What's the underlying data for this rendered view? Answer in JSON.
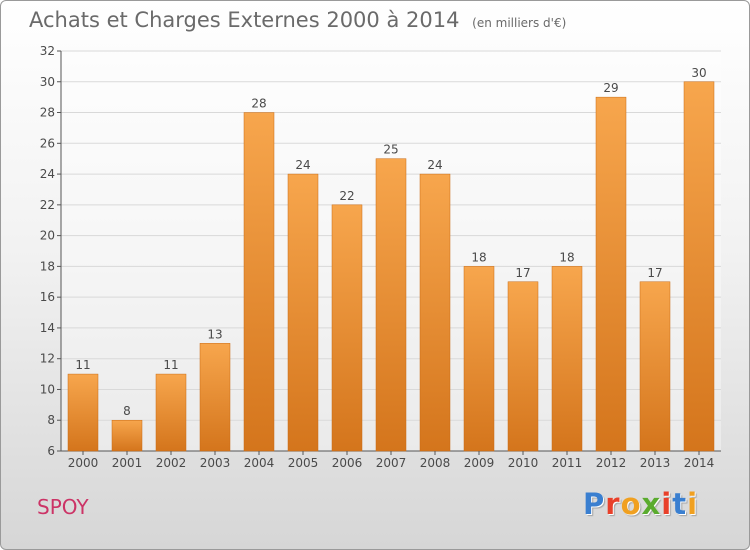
{
  "title": "Achats et Charges Externes 2000 à 2014",
  "subtitle": "(en milliers d'€)",
  "commune": "SPOY",
  "brand": {
    "text": "Proxiti",
    "letter_colors": [
      "#3a7fd0",
      "#e8402a",
      "#f0a020",
      "#5aab2e",
      "#e8402a",
      "#3a7fd0",
      "#f0a020"
    ]
  },
  "colors": {
    "bar_top": "#f7a64d",
    "bar_bottom": "#d4751c",
    "grid": "#d9d9d9",
    "axis": "#555555"
  },
  "chart_data": {
    "type": "bar",
    "categories": [
      "2000",
      "2001",
      "2002",
      "2003",
      "2004",
      "2005",
      "2006",
      "2007",
      "2008",
      "2009",
      "2010",
      "2011",
      "2012",
      "2013",
      "2014"
    ],
    "values": [
      11,
      8,
      11,
      13,
      28,
      24,
      22,
      25,
      24,
      18,
      17,
      18,
      29,
      17,
      30
    ],
    "title": "Achats et Charges Externes 2000 à 2014",
    "subtitle": "(en milliers d'€)",
    "xlabel": "",
    "ylabel": "",
    "ylim": [
      6,
      32
    ],
    "yticks": [
      6,
      8,
      10,
      12,
      14,
      16,
      18,
      20,
      22,
      24,
      26,
      28,
      30,
      32
    ],
    "grid": true,
    "data_labels": true
  }
}
